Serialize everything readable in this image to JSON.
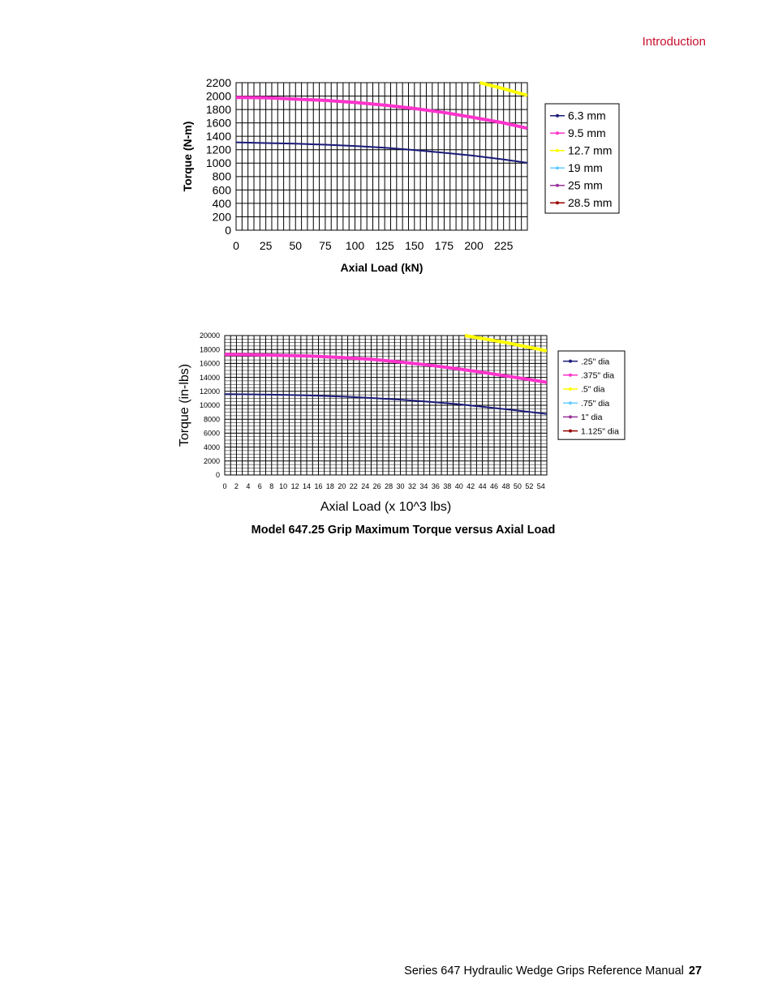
{
  "header": {
    "section": "Introduction"
  },
  "caption": "Model 647.25 Grip Maximum Torque versus Axial Load",
  "footer": {
    "manual_title": "Series 647 Hydraulic Wedge Grips Reference Manual",
    "page_number": "27"
  },
  "colors": {
    "header_accent": "#c8102e"
  },
  "chart_data": [
    {
      "type": "line",
      "title": "",
      "xlabel": "Axial Load (kN)",
      "ylabel": "Torque (N-m)",
      "xlim": [
        0,
        245
      ],
      "ylim": [
        0,
        2200
      ],
      "x_ticks": [
        0,
        25,
        50,
        75,
        100,
        125,
        150,
        175,
        200,
        225
      ],
      "y_ticks": [
        0,
        200,
        400,
        600,
        800,
        1000,
        1200,
        1400,
        1600,
        1800,
        2000,
        2200
      ],
      "grid": true,
      "legend_position": "right",
      "series": [
        {
          "name": "6.3 mm",
          "color": "#1a1a7a",
          "width": 2,
          "x": [
            0,
            25,
            50,
            75,
            100,
            125,
            150,
            175,
            200,
            225,
            245
          ],
          "y": [
            1310,
            1300,
            1290,
            1275,
            1255,
            1230,
            1195,
            1155,
            1110,
            1055,
            1005
          ]
        },
        {
          "name": "9.5 mm",
          "color": "#ff33cc",
          "width": 4,
          "x": [
            0,
            25,
            50,
            75,
            100,
            125,
            150,
            175,
            200,
            225,
            245
          ],
          "y": [
            1980,
            1975,
            1955,
            1935,
            1905,
            1865,
            1815,
            1755,
            1680,
            1600,
            1520
          ]
        },
        {
          "name": "12.7 mm",
          "color": "#ffff00",
          "width": 4,
          "x": [
            205,
            225,
            245
          ],
          "y": [
            2200,
            2110,
            2010
          ]
        },
        {
          "name": "19 mm",
          "color": "#66ccff",
          "width": 1,
          "x": [],
          "y": []
        },
        {
          "name": "25 mm",
          "color": "#993399",
          "width": 1,
          "x": [],
          "y": []
        },
        {
          "name": "28.5 mm",
          "color": "#990000",
          "width": 1,
          "x": [],
          "y": []
        }
      ]
    },
    {
      "type": "line",
      "title": "",
      "xlabel": "Axial Load (x 10^3 lbs)",
      "ylabel": "Torque (in-lbs)",
      "xlim": [
        0,
        55
      ],
      "ylim": [
        0,
        20000
      ],
      "x_ticks": [
        0,
        2,
        4,
        6,
        8,
        10,
        12,
        14,
        16,
        18,
        20,
        22,
        24,
        26,
        28,
        30,
        32,
        34,
        36,
        38,
        40,
        42,
        44,
        46,
        48,
        50,
        52,
        54
      ],
      "y_ticks": [
        0,
        2000,
        4000,
        6000,
        8000,
        10000,
        12000,
        14000,
        16000,
        18000,
        20000
      ],
      "grid": true,
      "legend_position": "right",
      "series": [
        {
          "name": ".25\" dia",
          "color": "#1a1a7a",
          "width": 2,
          "x": [
            0,
            5,
            10,
            15,
            20,
            25,
            30,
            35,
            40,
            45,
            50,
            55
          ],
          "y": [
            11600,
            11550,
            11500,
            11400,
            11250,
            11050,
            10800,
            10500,
            10150,
            9700,
            9250,
            8750
          ]
        },
        {
          "name": ".375\" dia",
          "color": "#ff33cc",
          "width": 4,
          "x": [
            0,
            5,
            10,
            15,
            20,
            25,
            30,
            35,
            40,
            45,
            50,
            55
          ],
          "y": [
            17300,
            17250,
            17150,
            17050,
            16850,
            16600,
            16200,
            15750,
            15200,
            14600,
            13950,
            13300
          ]
        },
        {
          "name": ".5\" dia",
          "color": "#ffff00",
          "width": 4,
          "x": [
            41,
            48,
            55
          ],
          "y": [
            20000,
            19000,
            17800
          ]
        },
        {
          "name": ".75\" dia",
          "color": "#66ccff",
          "width": 1,
          "x": [],
          "y": []
        },
        {
          "name": "1\" dia",
          "color": "#993399",
          "width": 1,
          "x": [],
          "y": []
        },
        {
          "name": "1.125\" dia",
          "color": "#990000",
          "width": 1,
          "x": [],
          "y": []
        }
      ]
    }
  ]
}
